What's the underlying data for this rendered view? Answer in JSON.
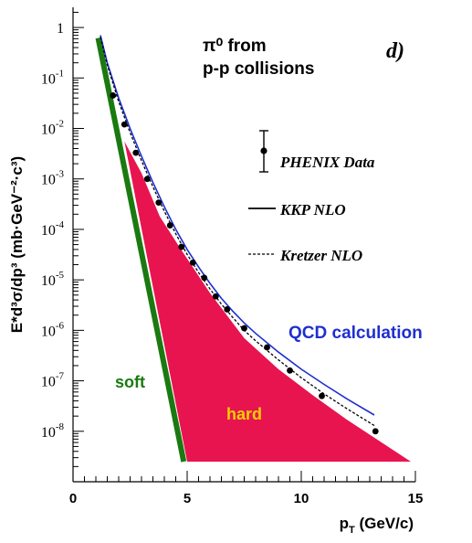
{
  "chart_data": {
    "type": "line",
    "panel_label": "d)",
    "title_lines": [
      "π⁰ from",
      "p-p collisions"
    ],
    "xlabel": "p_T (GeV/c)",
    "ylabel": "E*d³σ/dp³ (mb·GeV⁻²·c³)",
    "x_range": [
      0,
      15
    ],
    "y_range_log10": [
      -9,
      0.4
    ],
    "y_scale": "log",
    "grid": false,
    "x_ticks": [
      0,
      5,
      10,
      15
    ],
    "y_tick_labels": [
      {
        "value": 1,
        "mant": "1",
        "exp": ""
      },
      {
        "value": 0.1,
        "mant": "10",
        "exp": "-1"
      },
      {
        "value": 0.01,
        "mant": "10",
        "exp": "-2"
      },
      {
        "value": 0.001,
        "mant": "10",
        "exp": "-3"
      },
      {
        "value": 0.0001,
        "mant": "10",
        "exp": "-4"
      },
      {
        "value": 1e-05,
        "mant": "10",
        "exp": "-5"
      },
      {
        "value": 1e-06,
        "mant": "10",
        "exp": "-6"
      },
      {
        "value": 1e-07,
        "mant": "10",
        "exp": "-7"
      },
      {
        "value": 1e-08,
        "mant": "10",
        "exp": "-8"
      }
    ],
    "legend": {
      "placement": "right",
      "entries": [
        {
          "label": "PHENIX Data",
          "style": "point-errorbar"
        },
        {
          "label": "KKP NLO",
          "style": "solid"
        },
        {
          "label": "Kretzer NLO",
          "style": "dashed"
        }
      ]
    },
    "annotations": [
      {
        "text": "QCD calculation",
        "color": "#1f2fd0"
      },
      {
        "text": "soft",
        "color": "#1a7a10"
      },
      {
        "text": "hard",
        "color": "#f2d000"
      }
    ],
    "series": [
      {
        "name": "PHENIX Data",
        "kind": "points",
        "points": [
          [
            1.75,
            0.045
          ],
          [
            2.25,
            0.012
          ],
          [
            2.75,
            0.0033
          ],
          [
            3.25,
            0.001
          ],
          [
            3.75,
            0.00034
          ],
          [
            4.25,
            0.00012
          ],
          [
            4.75,
            4.5e-05
          ],
          [
            5.25,
            2.2e-05
          ],
          [
            5.75,
            1.1e-05
          ],
          [
            6.25,
            4.7e-06
          ],
          [
            6.75,
            2.6e-06
          ],
          [
            7.5,
            1.1e-06
          ],
          [
            8.5,
            4.6e-07
          ],
          [
            9.5,
            1.6e-07
          ],
          [
            10.9,
            5e-08
          ],
          [
            13.25,
            1e-08
          ]
        ]
      },
      {
        "name": "KKP NLO",
        "kind": "line",
        "style": "solid",
        "color": "#1f2fd0",
        "points": [
          [
            1.2,
            0.7
          ],
          [
            1.5,
            0.2
          ],
          [
            2.0,
            0.04
          ],
          [
            2.5,
            0.01
          ],
          [
            3.0,
            0.0028
          ],
          [
            3.5,
            0.00085
          ],
          [
            4.0,
            0.00028
          ],
          [
            4.5,
            0.0001
          ],
          [
            5.0,
            4e-05
          ],
          [
            5.5,
            1.8e-05
          ],
          [
            6.0,
            8.5e-06
          ],
          [
            6.5,
            4.3e-06
          ],
          [
            7.0,
            2.4e-06
          ],
          [
            7.5,
            1.4e-06
          ],
          [
            8.0,
            8.7e-07
          ],
          [
            9.0,
            3.7e-07
          ],
          [
            10.0,
            1.7e-07
          ],
          [
            11.0,
            8.5e-08
          ],
          [
            12.0,
            4.4e-08
          ],
          [
            13.2,
            2.1e-08
          ]
        ]
      },
      {
        "name": "Kretzer NLO",
        "kind": "line",
        "style": "dashed",
        "color": "#000000",
        "points": [
          [
            1.2,
            0.65
          ],
          [
            1.5,
            0.18
          ],
          [
            2.0,
            0.034
          ],
          [
            2.5,
            0.0083
          ],
          [
            3.0,
            0.0023
          ],
          [
            3.5,
            0.0007
          ],
          [
            4.0,
            0.00023
          ],
          [
            4.5,
            8.2e-05
          ],
          [
            5.0,
            3.2e-05
          ],
          [
            5.5,
            1.4e-05
          ],
          [
            6.0,
            6.6e-06
          ],
          [
            6.5,
            3.3e-06
          ],
          [
            7.0,
            1.8e-06
          ],
          [
            7.5,
            1e-06
          ],
          [
            8.0,
            6.2e-07
          ],
          [
            9.0,
            2.6e-07
          ],
          [
            10.0,
            1.15e-07
          ],
          [
            11.0,
            5.5e-08
          ],
          [
            12.0,
            2.8e-08
          ],
          [
            13.2,
            1.3e-08
          ]
        ]
      },
      {
        "name": "soft",
        "kind": "band",
        "color": "#1a7a10",
        "points": [
          [
            1.1,
            0.62
          ],
          [
            4.85,
            2.5e-09
          ]
        ]
      },
      {
        "name": "hard",
        "kind": "area",
        "color": "#e8144f",
        "points": [
          [
            2.25,
            0.0055
          ],
          [
            3.0,
            0.0013
          ],
          [
            3.8,
            0.00018
          ],
          [
            4.7,
            4.2e-05
          ],
          [
            6.0,
            5.5e-06
          ],
          [
            7.5,
            7e-07
          ],
          [
            9.0,
            1.7e-07
          ],
          [
            10.5,
            5.2e-08
          ],
          [
            12.0,
            1.7e-08
          ],
          [
            14.8,
            2.5e-09
          ],
          [
            5.0,
            2.5e-09
          ]
        ]
      }
    ]
  }
}
